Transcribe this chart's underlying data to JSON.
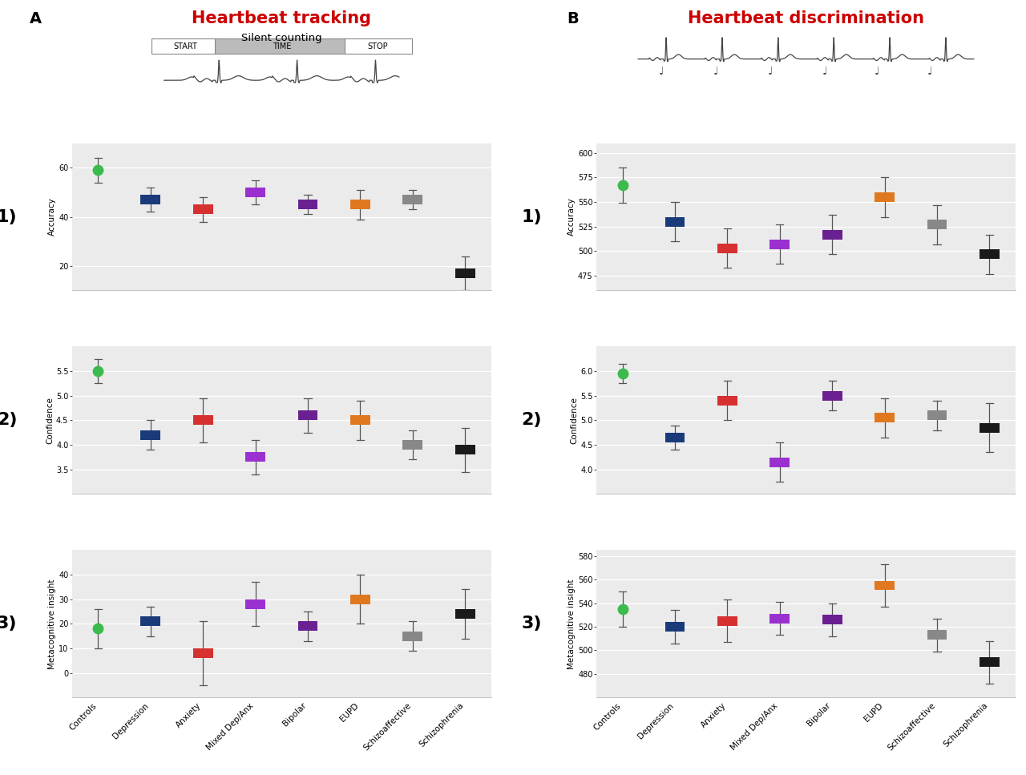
{
  "title_left": "Heartbeat tracking",
  "title_right": "Heartbeat discrimination",
  "label_A": "A",
  "label_B": "B",
  "categories": [
    "Controls",
    "Depression",
    "Anxiety",
    "Mixed Dep/Anx",
    "Bipolar",
    "EUPD",
    "Schizoaffective",
    "Schizophrenia"
  ],
  "colors": [
    "#3dba4e",
    "#1a3a7a",
    "#d63030",
    "#9b30d0",
    "#6a2090",
    "#e07820",
    "#888888",
    "#1a1a1a"
  ],
  "left_panel": {
    "accuracy": {
      "ylabel": "Accuracy",
      "ylim": [
        10,
        70
      ],
      "yticks": [
        20,
        40,
        60
      ],
      "means": [
        59,
        47,
        43,
        50,
        45,
        45,
        47,
        17
      ],
      "err_low": [
        5,
        5,
        5,
        5,
        4,
        6,
        4,
        7
      ],
      "err_high": [
        5,
        5,
        5,
        5,
        4,
        6,
        4,
        7
      ]
    },
    "confidence": {
      "ylabel": "Confidence",
      "ylim": [
        3.0,
        6.0
      ],
      "yticks": [
        3.5,
        4.0,
        4.5,
        5.0,
        5.5
      ],
      "means": [
        5.5,
        4.2,
        4.5,
        3.75,
        4.6,
        4.5,
        4.0,
        3.9
      ],
      "err_low": [
        0.25,
        0.3,
        0.45,
        0.35,
        0.35,
        0.4,
        0.3,
        0.45
      ],
      "err_high": [
        0.25,
        0.3,
        0.45,
        0.35,
        0.35,
        0.4,
        0.3,
        0.45
      ]
    },
    "metacognitive": {
      "ylabel": "Metacognitive insight",
      "ylim": [
        -10,
        50
      ],
      "yticks": [
        0,
        10,
        20,
        30,
        40
      ],
      "means": [
        18,
        21,
        8,
        28,
        19,
        30,
        15,
        24
      ],
      "err_low": [
        8,
        6,
        13,
        9,
        6,
        10,
        6,
        10
      ],
      "err_high": [
        8,
        6,
        13,
        9,
        6,
        10,
        6,
        10
      ]
    }
  },
  "right_panel": {
    "accuracy": {
      "ylabel": "Accuracy",
      "ylim": [
        460,
        610
      ],
      "yticks": [
        475,
        500,
        525,
        550,
        575,
        600
      ],
      "means": [
        567,
        530,
        503,
        507,
        517,
        555,
        527,
        497
      ],
      "err_low": [
        18,
        20,
        20,
        20,
        20,
        20,
        20,
        20
      ],
      "err_high": [
        18,
        20,
        20,
        20,
        20,
        20,
        20,
        20
      ]
    },
    "confidence": {
      "ylabel": "Confidence",
      "ylim": [
        3.5,
        6.5
      ],
      "yticks": [
        4.0,
        4.5,
        5.0,
        5.5,
        6.0
      ],
      "means": [
        5.95,
        4.65,
        5.4,
        4.15,
        5.5,
        5.05,
        5.1,
        4.85
      ],
      "err_low": [
        0.2,
        0.25,
        0.4,
        0.4,
        0.3,
        0.4,
        0.3,
        0.5
      ],
      "err_high": [
        0.2,
        0.25,
        0.4,
        0.4,
        0.3,
        0.4,
        0.3,
        0.5
      ]
    },
    "metacognitive": {
      "ylabel": "Metacognitive insight",
      "ylim": [
        460,
        585
      ],
      "yticks": [
        480,
        500,
        520,
        540,
        560,
        580
      ],
      "means": [
        535,
        520,
        525,
        527,
        526,
        555,
        513,
        490
      ],
      "err_low": [
        15,
        14,
        18,
        14,
        14,
        18,
        14,
        18
      ],
      "err_high": [
        15,
        14,
        18,
        14,
        14,
        18,
        14,
        18
      ]
    }
  },
  "title_color": "#cc0000",
  "plot_bg": "#ebebeb"
}
